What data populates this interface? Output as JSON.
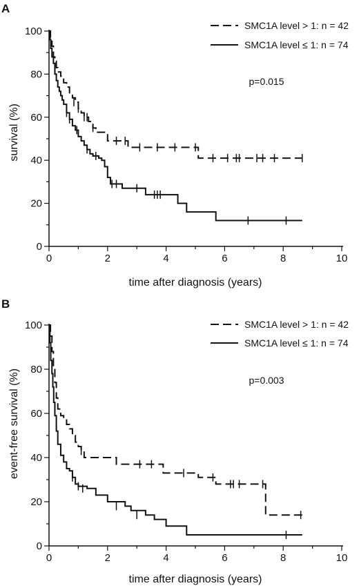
{
  "chart_data": [
    {
      "type": "line",
      "panel_label": "A",
      "xlabel": "time after diagnosis (years)",
      "ylabel": "survival (%)",
      "xlim": [
        0,
        10
      ],
      "ylim": [
        0,
        100
      ],
      "xticks": [
        "0",
        "2",
        "4",
        "6",
        "8",
        "10"
      ],
      "yticks": [
        "0",
        "20",
        "40",
        "60",
        "80",
        "100"
      ],
      "annotation": "p=0.015",
      "legend_position": "top-right",
      "series": [
        {
          "name": "SMC1A level > 1: n = 42",
          "style": "dashed",
          "x": [
            0,
            0.05,
            0.1,
            0.15,
            0.2,
            0.25,
            0.3,
            0.4,
            0.5,
            0.6,
            0.7,
            0.8,
            0.9,
            1.0,
            1.1,
            1.2,
            1.35,
            1.5,
            1.6,
            1.7,
            1.9,
            2.0,
            2.2,
            2.7,
            5.1,
            8.65
          ],
          "y": [
            100,
            97,
            93,
            88,
            86,
            83,
            81,
            79,
            76,
            74,
            71,
            69,
            67,
            64,
            62,
            60,
            58,
            55,
            53,
            53,
            53,
            49,
            49,
            46,
            41,
            41
          ],
          "censored": [
            {
              "x": 0.85,
              "y": 67
            },
            {
              "x": 1.0,
              "y": 64
            },
            {
              "x": 1.2,
              "y": 60
            },
            {
              "x": 1.3,
              "y": 60
            },
            {
              "x": 1.5,
              "y": 55
            },
            {
              "x": 2.3,
              "y": 49
            },
            {
              "x": 2.6,
              "y": 49
            },
            {
              "x": 3.1,
              "y": 46
            },
            {
              "x": 3.7,
              "y": 46
            },
            {
              "x": 4.3,
              "y": 46
            },
            {
              "x": 5.0,
              "y": 46
            },
            {
              "x": 5.6,
              "y": 41
            },
            {
              "x": 6.1,
              "y": 41
            },
            {
              "x": 6.4,
              "y": 41
            },
            {
              "x": 6.5,
              "y": 41
            },
            {
              "x": 7.1,
              "y": 41
            },
            {
              "x": 7.3,
              "y": 41
            },
            {
              "x": 7.7,
              "y": 41
            },
            {
              "x": 8.65,
              "y": 41
            }
          ]
        },
        {
          "name": "SMC1A level ≤ 1: n = 74",
          "style": "solid",
          "x": [
            0,
            0.03,
            0.06,
            0.1,
            0.15,
            0.2,
            0.25,
            0.3,
            0.35,
            0.4,
            0.45,
            0.5,
            0.6,
            0.7,
            0.8,
            0.9,
            1.0,
            1.1,
            1.2,
            1.3,
            1.4,
            1.5,
            1.7,
            1.8,
            1.9,
            2.0,
            2.1,
            2.5,
            2.8,
            3.3,
            4.4,
            4.7,
            5.7,
            8.65
          ],
          "y": [
            100,
            96,
            92,
            88,
            85,
            80,
            77,
            74,
            72,
            70,
            68,
            66,
            62,
            59,
            56,
            54,
            51,
            49,
            47,
            45,
            43,
            42,
            41,
            40,
            37,
            32,
            29,
            27,
            27,
            24,
            20,
            16,
            12,
            12
          ],
          "censored": [
            {
              "x": 0.6,
              "y": 62
            },
            {
              "x": 0.7,
              "y": 59
            },
            {
              "x": 0.95,
              "y": 54
            },
            {
              "x": 1.3,
              "y": 45
            },
            {
              "x": 1.6,
              "y": 42
            },
            {
              "x": 2.15,
              "y": 29
            },
            {
              "x": 2.3,
              "y": 29
            },
            {
              "x": 3.0,
              "y": 27
            },
            {
              "x": 3.6,
              "y": 24
            },
            {
              "x": 3.7,
              "y": 24
            },
            {
              "x": 3.8,
              "y": 24
            },
            {
              "x": 6.8,
              "y": 12
            },
            {
              "x": 8.1,
              "y": 12
            }
          ]
        }
      ]
    },
    {
      "type": "line",
      "panel_label": "B",
      "xlabel": "time after diagnosis (years)",
      "ylabel": "event-free survival (%)",
      "xlim": [
        0,
        10
      ],
      "ylim": [
        0,
        100
      ],
      "xticks": [
        "0",
        "2",
        "4",
        "6",
        "8",
        "10"
      ],
      "yticks": [
        "0",
        "20",
        "40",
        "60",
        "80",
        "100"
      ],
      "annotation": "p=0.003",
      "legend_position": "top-right",
      "series": [
        {
          "name": "SMC1A level > 1: n = 42",
          "style": "dashed",
          "x": [
            0,
            0.05,
            0.1,
            0.15,
            0.2,
            0.25,
            0.3,
            0.4,
            0.5,
            0.6,
            0.7,
            0.8,
            0.9,
            1.0,
            1.1,
            1.2,
            1.5,
            2.3,
            3.9,
            5.1,
            5.7,
            7.4,
            8.65
          ],
          "y": [
            100,
            95,
            88,
            81,
            74,
            67,
            62,
            59,
            57,
            55,
            53,
            50,
            47,
            45,
            43,
            40,
            40,
            37,
            33,
            31,
            28,
            14,
            14
          ],
          "censored": [
            {
              "x": 1.1,
              "y": 43
            },
            {
              "x": 3.1,
              "y": 37
            },
            {
              "x": 3.5,
              "y": 37
            },
            {
              "x": 4.6,
              "y": 33
            },
            {
              "x": 5.6,
              "y": 31
            },
            {
              "x": 6.2,
              "y": 28
            },
            {
              "x": 6.3,
              "y": 28
            },
            {
              "x": 6.5,
              "y": 28
            },
            {
              "x": 7.3,
              "y": 28
            },
            {
              "x": 8.6,
              "y": 14
            }
          ]
        },
        {
          "name": "SMC1A level ≤ 1: n = 74",
          "style": "solid",
          "x": [
            0,
            0.03,
            0.06,
            0.1,
            0.13,
            0.16,
            0.2,
            0.25,
            0.3,
            0.4,
            0.5,
            0.6,
            0.7,
            0.8,
            0.9,
            1.0,
            1.3,
            1.6,
            2.0,
            2.6,
            2.8,
            3.3,
            3.6,
            4.0,
            4.7,
            8.65
          ],
          "y": [
            100,
            92,
            84,
            78,
            72,
            65,
            59,
            52,
            46,
            41,
            38,
            35,
            34,
            31,
            28,
            27,
            26,
            23,
            20,
            18,
            16,
            14,
            12,
            9,
            5,
            5
          ],
          "censored": [
            {
              "x": 0.8,
              "y": 31
            },
            {
              "x": 1.0,
              "y": 27
            },
            {
              "x": 1.15,
              "y": 26
            },
            {
              "x": 2.3,
              "y": 18
            },
            {
              "x": 3.0,
              "y": 14
            },
            {
              "x": 8.1,
              "y": 5
            }
          ]
        }
      ]
    }
  ]
}
